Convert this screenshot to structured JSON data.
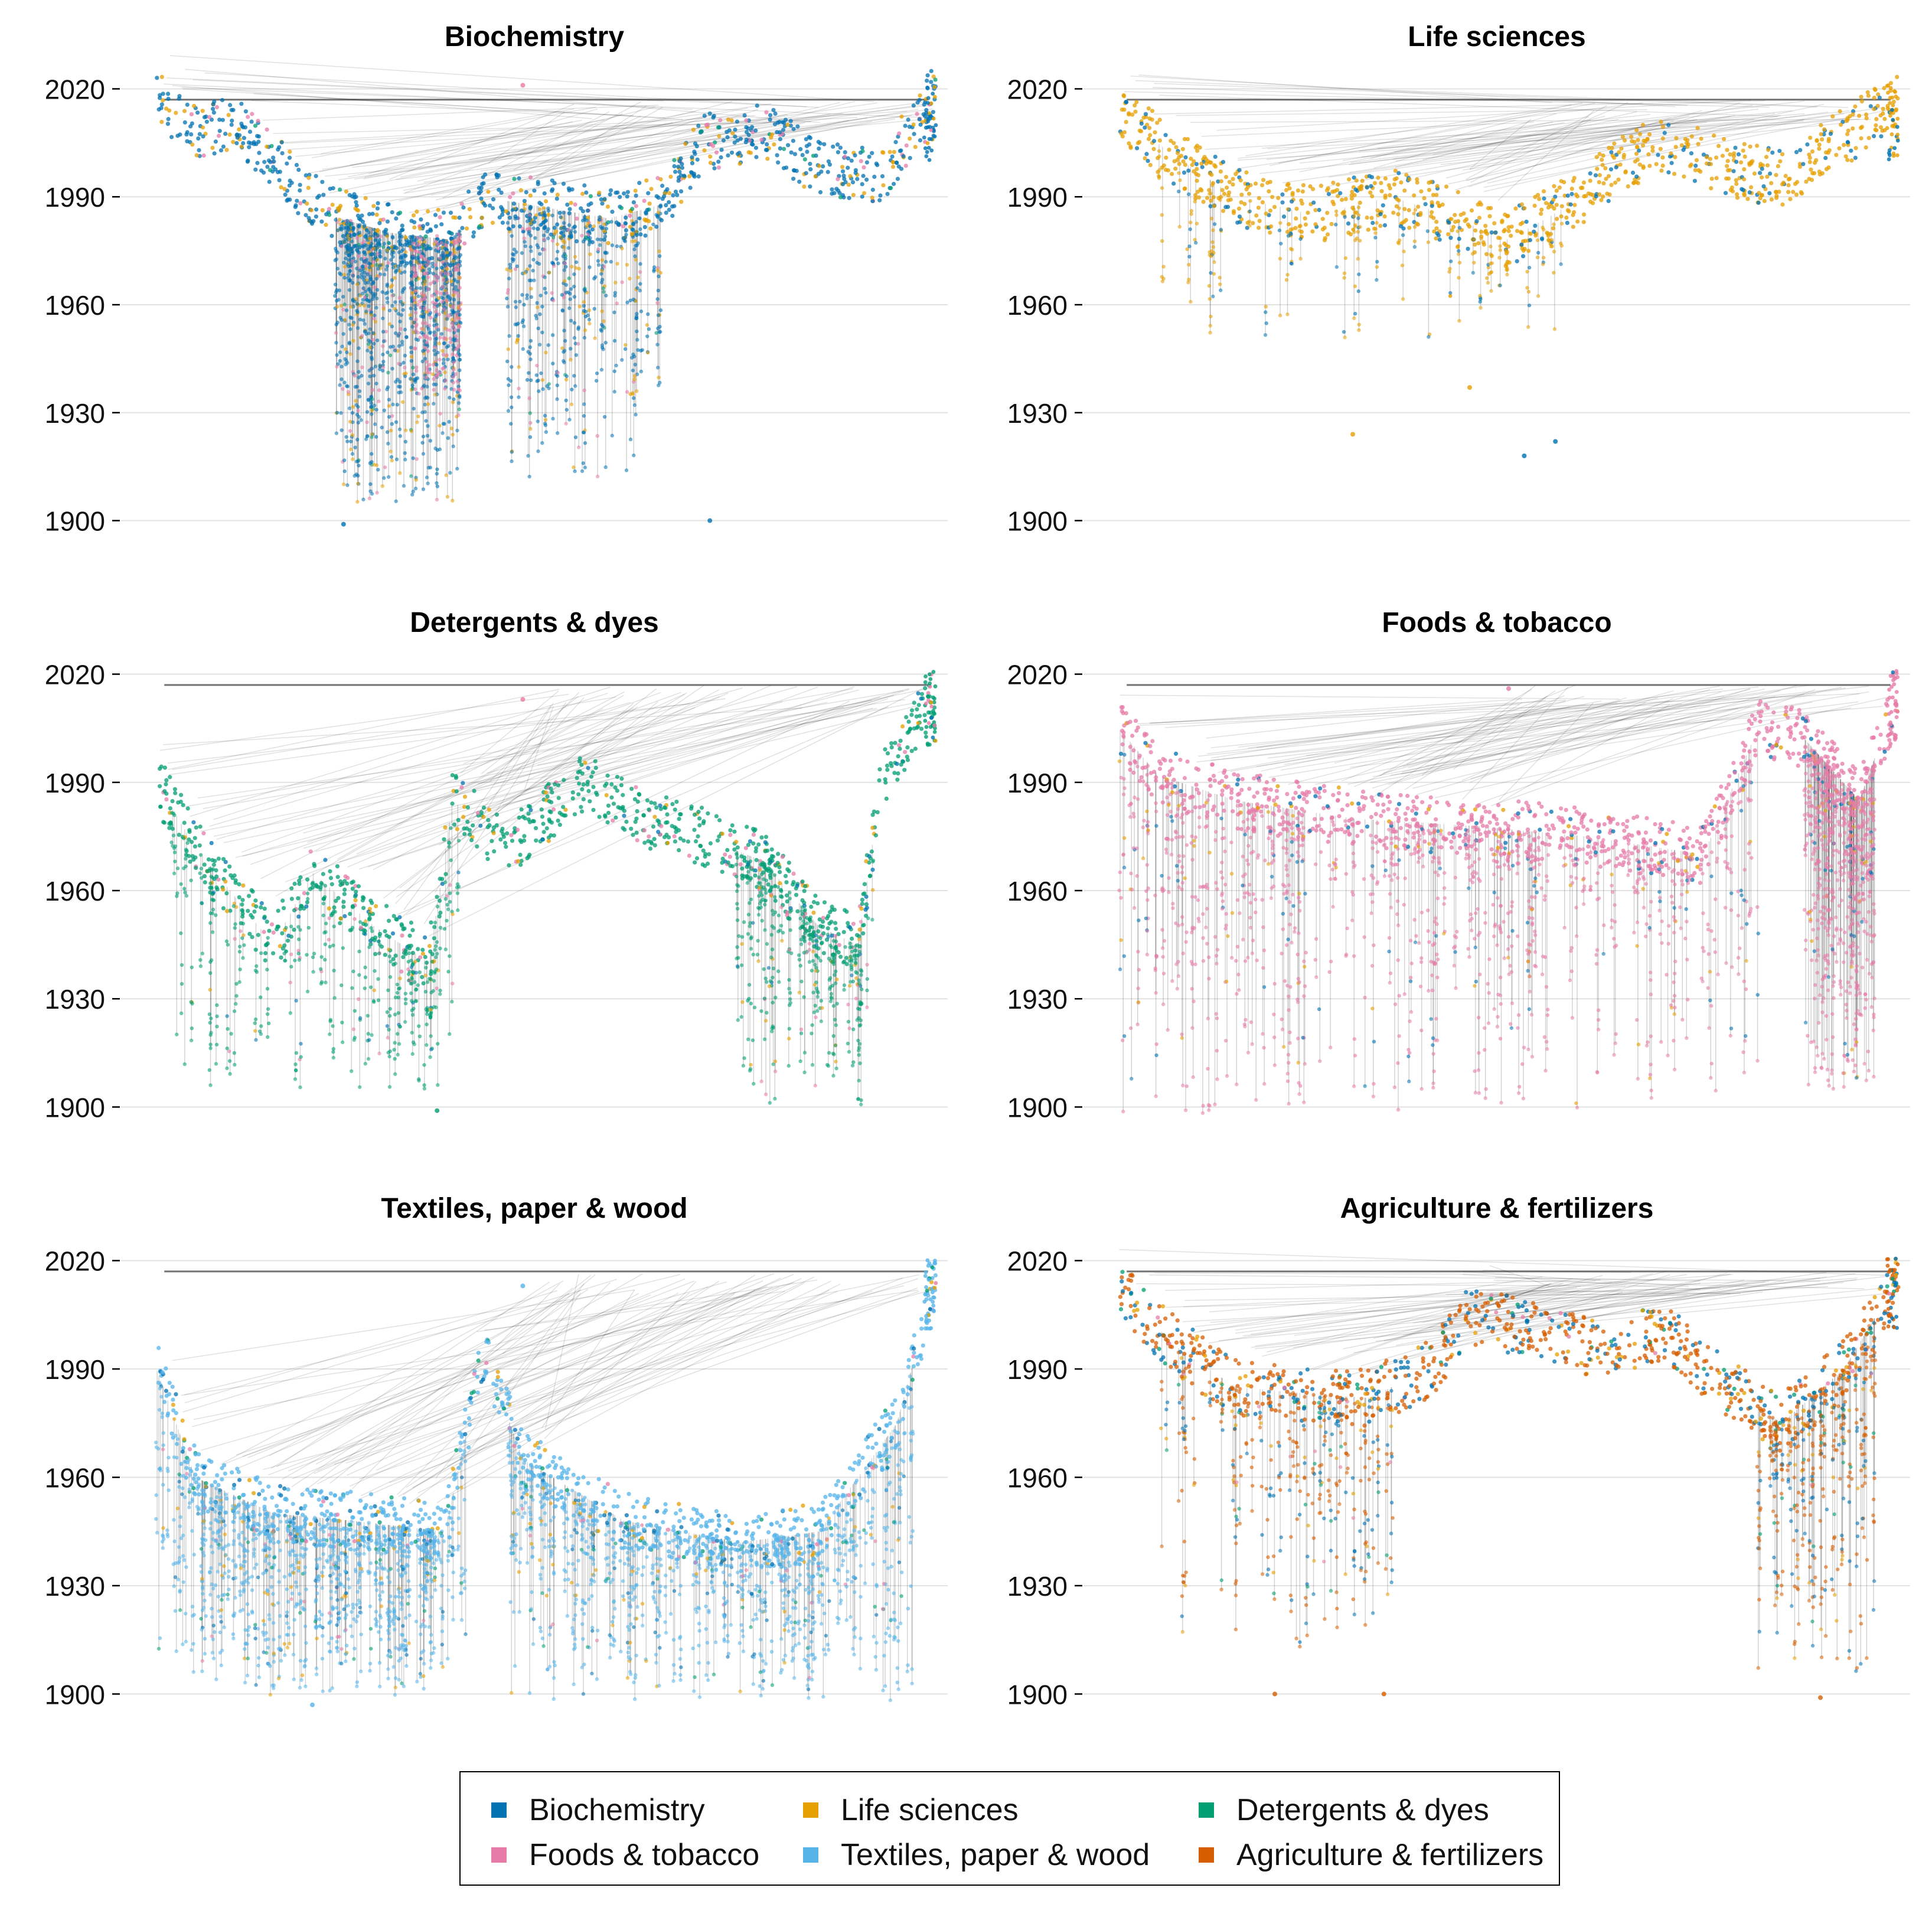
{
  "chart_data": [
    {
      "type": "scatter",
      "title": "Biochemistry",
      "xlabel": "",
      "ylabel": "",
      "ylim": [
        1895,
        2025
      ],
      "yticks": [
        1900,
        1930,
        1960,
        1990,
        2020
      ],
      "ytick_labels": [
        "1900",
        "1930",
        "1960",
        "1990",
        "2020"
      ],
      "grid": true,
      "baseline": [
        [
          0.0,
          2017
        ],
        [
          0.05,
          2008
        ],
        [
          0.1,
          2010
        ],
        [
          0.15,
          2000
        ],
        [
          0.22,
          1985
        ],
        [
          0.3,
          1980
        ],
        [
          0.38,
          1978
        ],
        [
          0.42,
          1990
        ],
        [
          0.5,
          1987
        ],
        [
          0.58,
          1984
        ],
        [
          0.65,
          1988
        ],
        [
          0.7,
          2005
        ],
        [
          0.78,
          2008
        ],
        [
          0.85,
          1998
        ],
        [
          0.93,
          1995
        ],
        [
          1.0,
          2020
        ]
      ],
      "series": [
        {
          "name": "Biochemistry",
          "weight": 0.72
        },
        {
          "name": "Life sciences",
          "weight": 0.17
        },
        {
          "name": "Detergents & dyes",
          "weight": 0.03
        },
        {
          "name": "Foods & tobacco",
          "weight": 0.08
        }
      ],
      "spikes": [
        {
          "x0": 0.23,
          "x1": 0.39,
          "bottom": 1905,
          "density": 0.95
        },
        {
          "x0": 0.45,
          "x1": 0.65,
          "bottom": 1912,
          "density": 0.45
        }
      ],
      "pink_band": [
        0.33,
        0.39
      ],
      "outliers": [
        [
          0.47,
          2021
        ],
        [
          0.71,
          1900
        ],
        [
          0.24,
          1899
        ]
      ]
    },
    {
      "type": "scatter",
      "title": "Life sciences",
      "xlabel": "",
      "ylabel": "",
      "ylim": [
        1895,
        2025
      ],
      "yticks": [
        1900,
        1930,
        1960,
        1990,
        2020
      ],
      "ytick_labels": [
        "1900",
        "1930",
        "1960",
        "1990",
        "2020"
      ],
      "grid": true,
      "baseline": [
        [
          0.0,
          2013
        ],
        [
          0.08,
          2000
        ],
        [
          0.15,
          1990
        ],
        [
          0.25,
          1985
        ],
        [
          0.35,
          1990
        ],
        [
          0.42,
          1985
        ],
        [
          0.5,
          1978
        ],
        [
          0.58,
          1988
        ],
        [
          0.65,
          2000
        ],
        [
          0.7,
          2005
        ],
        [
          0.78,
          1998
        ],
        [
          0.85,
          1995
        ],
        [
          0.92,
          2005
        ],
        [
          1.0,
          2017
        ]
      ],
      "series": [
        {
          "name": "Life sciences",
          "weight": 0.8
        },
        {
          "name": "Biochemistry",
          "weight": 0.2
        }
      ],
      "spikes": [
        {
          "x0": 0.05,
          "x1": 0.6,
          "bottom": 1950,
          "density": 0.2
        }
      ],
      "outliers": [
        [
          0.3,
          1924
        ],
        [
          0.52,
          1918
        ],
        [
          0.56,
          1922
        ],
        [
          0.45,
          1937
        ]
      ]
    },
    {
      "type": "scatter",
      "title": "Detergents & dyes",
      "xlabel": "",
      "ylabel": "",
      "ylim": [
        1895,
        2025
      ],
      "yticks": [
        1900,
        1930,
        1960,
        1990,
        2020
      ],
      "ytick_labels": [
        "1900",
        "1930",
        "1960",
        "1990",
        "2020"
      ],
      "grid": true,
      "baseline": [
        [
          0.0,
          1990
        ],
        [
          0.05,
          1972
        ],
        [
          0.15,
          1945
        ],
        [
          0.2,
          1965
        ],
        [
          0.28,
          1950
        ],
        [
          0.35,
          1940
        ],
        [
          0.38,
          1985
        ],
        [
          0.45,
          1972
        ],
        [
          0.55,
          1990
        ],
        [
          0.62,
          1980
        ],
        [
          0.7,
          1975
        ],
        [
          0.78,
          1968
        ],
        [
          0.85,
          1950
        ],
        [
          0.9,
          1945
        ],
        [
          0.93,
          1990
        ],
        [
          1.0,
          2015
        ]
      ],
      "series": [
        {
          "name": "Detergents & dyes",
          "weight": 0.82
        },
        {
          "name": "Foods & tobacco",
          "weight": 0.07
        },
        {
          "name": "Life sciences",
          "weight": 0.06
        },
        {
          "name": "Biochemistry",
          "weight": 0.05
        }
      ],
      "spikes": [
        {
          "x0": 0.02,
          "x1": 0.4,
          "bottom": 1905,
          "density": 0.35
        },
        {
          "x0": 0.74,
          "x1": 0.92,
          "bottom": 1900,
          "density": 0.35
        }
      ],
      "outliers": [
        [
          0.47,
          2013
        ],
        [
          0.36,
          1899
        ]
      ]
    },
    {
      "type": "scatter",
      "title": "Foods & tobacco",
      "xlabel": "",
      "ylabel": "",
      "ylim": [
        1895,
        2025
      ],
      "yticks": [
        1900,
        1930,
        1960,
        1990,
        2020
      ],
      "ytick_labels": [
        "1900",
        "1930",
        "1960",
        "1990",
        "2020"
      ],
      "grid": true,
      "baseline": [
        [
          0.0,
          2005
        ],
        [
          0.05,
          1992
        ],
        [
          0.15,
          1985
        ],
        [
          0.3,
          1980
        ],
        [
          0.45,
          1978
        ],
        [
          0.6,
          1975
        ],
        [
          0.75,
          1970
        ],
        [
          0.82,
          2005
        ],
        [
          0.88,
          2002
        ],
        [
          0.95,
          1985
        ],
        [
          1.0,
          2015
        ]
      ],
      "series": [
        {
          "name": "Foods & tobacco",
          "weight": 0.88
        },
        {
          "name": "Biochemistry",
          "weight": 0.07
        },
        {
          "name": "Life sciences",
          "weight": 0.05
        }
      ],
      "spikes": [
        {
          "x0": 0.0,
          "x1": 0.82,
          "bottom": 1898,
          "density": 1.0
        },
        {
          "x0": 0.88,
          "x1": 0.97,
          "bottom": 1905,
          "density": 0.6
        }
      ],
      "outliers": [
        [
          0.5,
          2016
        ]
      ]
    },
    {
      "type": "scatter",
      "title": "Textiles, paper & wood",
      "xlabel": "",
      "ylabel": "",
      "ylim": [
        1895,
        2025
      ],
      "yticks": [
        1900,
        1930,
        1960,
        1990,
        2020
      ],
      "ytick_labels": [
        "1900",
        "1930",
        "1960",
        "1990",
        "2020"
      ],
      "grid": true,
      "baseline": [
        [
          0.0,
          1990
        ],
        [
          0.05,
          1960
        ],
        [
          0.15,
          1950
        ],
        [
          0.25,
          1948
        ],
        [
          0.37,
          1945
        ],
        [
          0.42,
          1995
        ],
        [
          0.47,
          1965
        ],
        [
          0.6,
          1948
        ],
        [
          0.75,
          1942
        ],
        [
          0.85,
          1945
        ],
        [
          0.95,
          1975
        ],
        [
          1.0,
          2015
        ]
      ],
      "series": [
        {
          "name": "Textiles, paper & wood",
          "weight": 0.83
        },
        {
          "name": "Biochemistry",
          "weight": 0.06
        },
        {
          "name": "Life sciences",
          "weight": 0.05
        },
        {
          "name": "Detergents & dyes",
          "weight": 0.04
        },
        {
          "name": "Foods & tobacco",
          "weight": 0.02
        }
      ],
      "spikes": [
        {
          "x0": 0.0,
          "x1": 0.4,
          "bottom": 1899,
          "density": 1.0
        },
        {
          "x0": 0.45,
          "x1": 0.97,
          "bottom": 1898,
          "density": 1.0
        }
      ],
      "outliers": [
        [
          0.47,
          2013
        ],
        [
          0.2,
          1897
        ]
      ]
    },
    {
      "type": "scatter",
      "title": "Agriculture & fertilizers",
      "xlabel": "",
      "ylabel": "",
      "ylim": [
        1895,
        2025
      ],
      "yticks": [
        1900,
        1930,
        1960,
        1990,
        2020
      ],
      "ytick_labels": [
        "1900",
        "1930",
        "1960",
        "1990",
        "2020"
      ],
      "grid": true,
      "baseline": [
        [
          0.0,
          2012
        ],
        [
          0.08,
          1995
        ],
        [
          0.15,
          1985
        ],
        [
          0.25,
          1983
        ],
        [
          0.32,
          1982
        ],
        [
          0.4,
          1990
        ],
        [
          0.45,
          2005
        ],
        [
          0.55,
          2000
        ],
        [
          0.62,
          1995
        ],
        [
          0.7,
          2000
        ],
        [
          0.78,
          1985
        ],
        [
          0.85,
          1975
        ],
        [
          0.93,
          1990
        ],
        [
          1.0,
          2015
        ]
      ],
      "series": [
        {
          "name": "Agriculture & fertilizers",
          "weight": 0.6
        },
        {
          "name": "Biochemistry",
          "weight": 0.25
        },
        {
          "name": "Life sciences",
          "weight": 0.08
        },
        {
          "name": "Detergents & dyes",
          "weight": 0.05
        },
        {
          "name": "Foods & tobacco",
          "weight": 0.02
        }
      ],
      "spikes": [
        {
          "x0": 0.05,
          "x1": 0.35,
          "bottom": 1912,
          "density": 0.3
        },
        {
          "x0": 0.82,
          "x1": 0.97,
          "bottom": 1906,
          "density": 0.35
        }
      ],
      "outliers": [
        [
          0.2,
          1900
        ],
        [
          0.34,
          1900
        ],
        [
          0.9,
          1899
        ]
      ]
    }
  ],
  "legend": {
    "items": [
      {
        "label": "Biochemistry",
        "color": "#0072b2"
      },
      {
        "label": "Life sciences",
        "color": "#e69f00"
      },
      {
        "label": "Detergents & dyes",
        "color": "#009e73"
      },
      {
        "label": "Foods & tobacco",
        "color": "#e67ba8"
      },
      {
        "label": "Textiles, paper & wood",
        "color": "#56b4e9"
      },
      {
        "label": "Agriculture & fertilizers",
        "color": "#d55e00"
      }
    ]
  },
  "colors": {
    "Biochemistry": "#0072b2",
    "Life sciences": "#e69f00",
    "Detergents & dyes": "#009e73",
    "Foods & tobacco": "#e67ba8",
    "Textiles, paper & wood": "#56b4e9",
    "Agriculture & fertilizers": "#d55e00",
    "grid": "#e2e2e2",
    "edges": "#000000"
  }
}
